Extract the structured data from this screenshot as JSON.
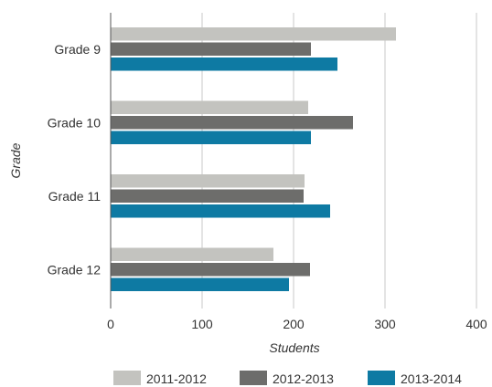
{
  "chart_data": {
    "type": "bar",
    "orientation": "horizontal",
    "categories": [
      "Grade 9",
      "Grade 10",
      "Grade 11",
      "Grade 12"
    ],
    "series": [
      {
        "name": "2011-2012",
        "color": "#c3c3bf",
        "values": [
          312,
          216,
          212,
          178
        ]
      },
      {
        "name": "2012-2013",
        "color": "#6d6d6b",
        "values": [
          219,
          265,
          211,
          218
        ]
      },
      {
        "name": "2013-2014",
        "color": "#0e7aa3",
        "values": [
          248,
          219,
          240,
          195
        ]
      }
    ],
    "xlabel": "Students",
    "ylabel": "Grade",
    "xlim": [
      0,
      400
    ],
    "xticks": [
      0,
      100,
      200,
      300,
      400
    ],
    "grid": true,
    "legend": "bottom"
  }
}
